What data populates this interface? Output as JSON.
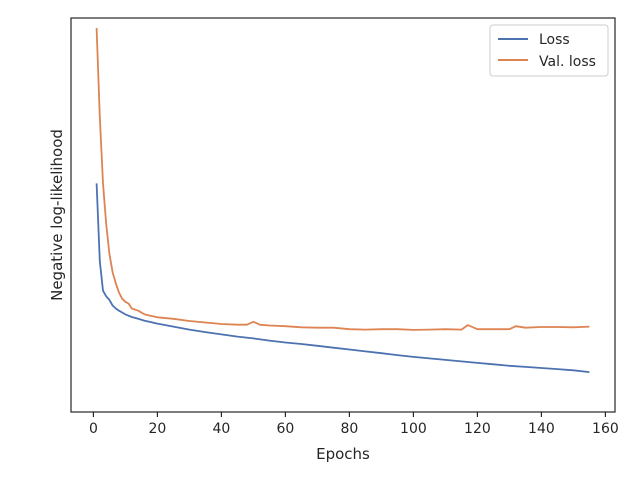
{
  "chart_data": {
    "type": "line",
    "title": "",
    "xlabel": "Epochs",
    "ylabel": "Negative log-likelihood",
    "xlim": [
      -7,
      163
    ],
    "ylim": [
      0,
      1
    ],
    "y_tick_labels": "none",
    "grid": false,
    "legend_position": "top-right",
    "x_ticks": [
      0,
      20,
      40,
      60,
      80,
      100,
      120,
      140,
      160
    ],
    "colors": {
      "Loss": "#4c72b0",
      "Val. loss": "#dd8452"
    },
    "series": [
      {
        "name": "Loss",
        "x": [
          1,
          2,
          3,
          4,
          5,
          6,
          7,
          8,
          9,
          10,
          12,
          14,
          16,
          18,
          20,
          25,
          30,
          35,
          40,
          45,
          50,
          55,
          60,
          65,
          70,
          75,
          80,
          85,
          90,
          95,
          100,
          105,
          110,
          115,
          120,
          125,
          130,
          135,
          140,
          145,
          150,
          155
        ],
        "y": [
          0.58,
          0.37,
          0.29,
          0.275,
          0.265,
          0.25,
          0.242,
          0.236,
          0.231,
          0.226,
          0.219,
          0.214,
          0.209,
          0.205,
          0.201,
          0.193,
          0.185,
          0.178,
          0.172,
          0.166,
          0.161,
          0.155,
          0.15,
          0.146,
          0.141,
          0.136,
          0.131,
          0.126,
          0.121,
          0.116,
          0.111,
          0.107,
          0.103,
          0.099,
          0.095,
          0.091,
          0.087,
          0.084,
          0.081,
          0.078,
          0.075,
          0.07
        ]
      },
      {
        "name": "Val. loss",
        "x": [
          1,
          2,
          3,
          4,
          5,
          6,
          7,
          8,
          9,
          10,
          11,
          12,
          14,
          16,
          18,
          20,
          25,
          30,
          35,
          40,
          45,
          48,
          50,
          52,
          55,
          60,
          65,
          70,
          75,
          80,
          85,
          90,
          95,
          100,
          105,
          110,
          115,
          117,
          120,
          125,
          130,
          132,
          135,
          140,
          145,
          150,
          155
        ],
        "y": [
          1.0,
          0.76,
          0.58,
          0.47,
          0.39,
          0.34,
          0.31,
          0.285,
          0.268,
          0.26,
          0.255,
          0.242,
          0.236,
          0.226,
          0.222,
          0.218,
          0.214,
          0.208,
          0.204,
          0.2,
          0.198,
          0.198,
          0.206,
          0.198,
          0.196,
          0.194,
          0.191,
          0.19,
          0.19,
          0.186,
          0.185,
          0.186,
          0.186,
          0.184,
          0.185,
          0.186,
          0.185,
          0.197,
          0.186,
          0.186,
          0.186,
          0.194,
          0.19,
          0.192,
          0.192,
          0.191,
          0.193
        ]
      }
    ]
  }
}
